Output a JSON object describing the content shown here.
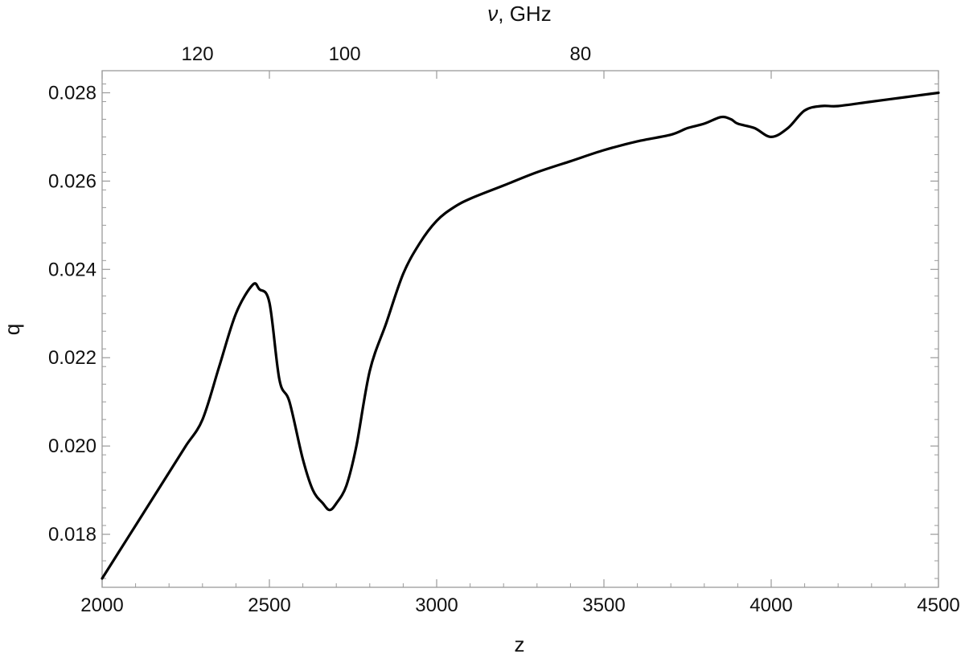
{
  "chart_data": {
    "type": "line",
    "title": "",
    "xlabel": "z",
    "ylabel": "q",
    "top_axis_label_symbol": "ν",
    "top_axis_label_unit": ", GHz",
    "xlim": [
      2000,
      4500
    ],
    "ylim": [
      0.0168,
      0.0285
    ],
    "x_ticks": [
      2000,
      2500,
      3000,
      3500,
      4000,
      4500
    ],
    "x_tick_labels": [
      "2000",
      "2500",
      "3000",
      "3500",
      "4000",
      "4500"
    ],
    "y_ticks": [
      0.018,
      0.02,
      0.022,
      0.024,
      0.026,
      0.028
    ],
    "y_tick_labels": [
      "0.018",
      "0.020",
      "0.022",
      "0.024",
      "0.026",
      "0.028"
    ],
    "top_axis_ticks_z": [
      2285,
      2725,
      3430
    ],
    "top_tick_labels": [
      "120",
      "100",
      "80"
    ],
    "grid": false,
    "line_color": "#000000",
    "series": [
      {
        "x": [
          2000,
          2050,
          2100,
          2150,
          2200,
          2250,
          2300,
          2350,
          2400,
          2450,
          2470,
          2500,
          2530,
          2560,
          2600,
          2630,
          2660,
          2680,
          2700,
          2730,
          2760,
          2800,
          2850,
          2900,
          2950,
          3000,
          3050,
          3100,
          3200,
          3300,
          3400,
          3500,
          3600,
          3700,
          3750,
          3800,
          3850,
          3880,
          3900,
          3950,
          4000,
          4050,
          4100,
          4150,
          4200,
          4300,
          4400,
          4500
        ],
        "y": [
          0.017,
          0.0176,
          0.0182,
          0.0188,
          0.0194,
          0.02,
          0.0206,
          0.0218,
          0.023,
          0.02365,
          0.02355,
          0.02325,
          0.0215,
          0.021,
          0.0197,
          0.019,
          0.0187,
          0.01855,
          0.0187,
          0.0191,
          0.02,
          0.0217,
          0.0228,
          0.0239,
          0.0246,
          0.0251,
          0.0254,
          0.0256,
          0.0259,
          0.0262,
          0.02645,
          0.0267,
          0.0269,
          0.02705,
          0.0272,
          0.0273,
          0.02745,
          0.0274,
          0.0273,
          0.0272,
          0.027,
          0.0272,
          0.0276,
          0.0277,
          0.0277,
          0.0278,
          0.0279,
          0.028
        ]
      }
    ]
  }
}
